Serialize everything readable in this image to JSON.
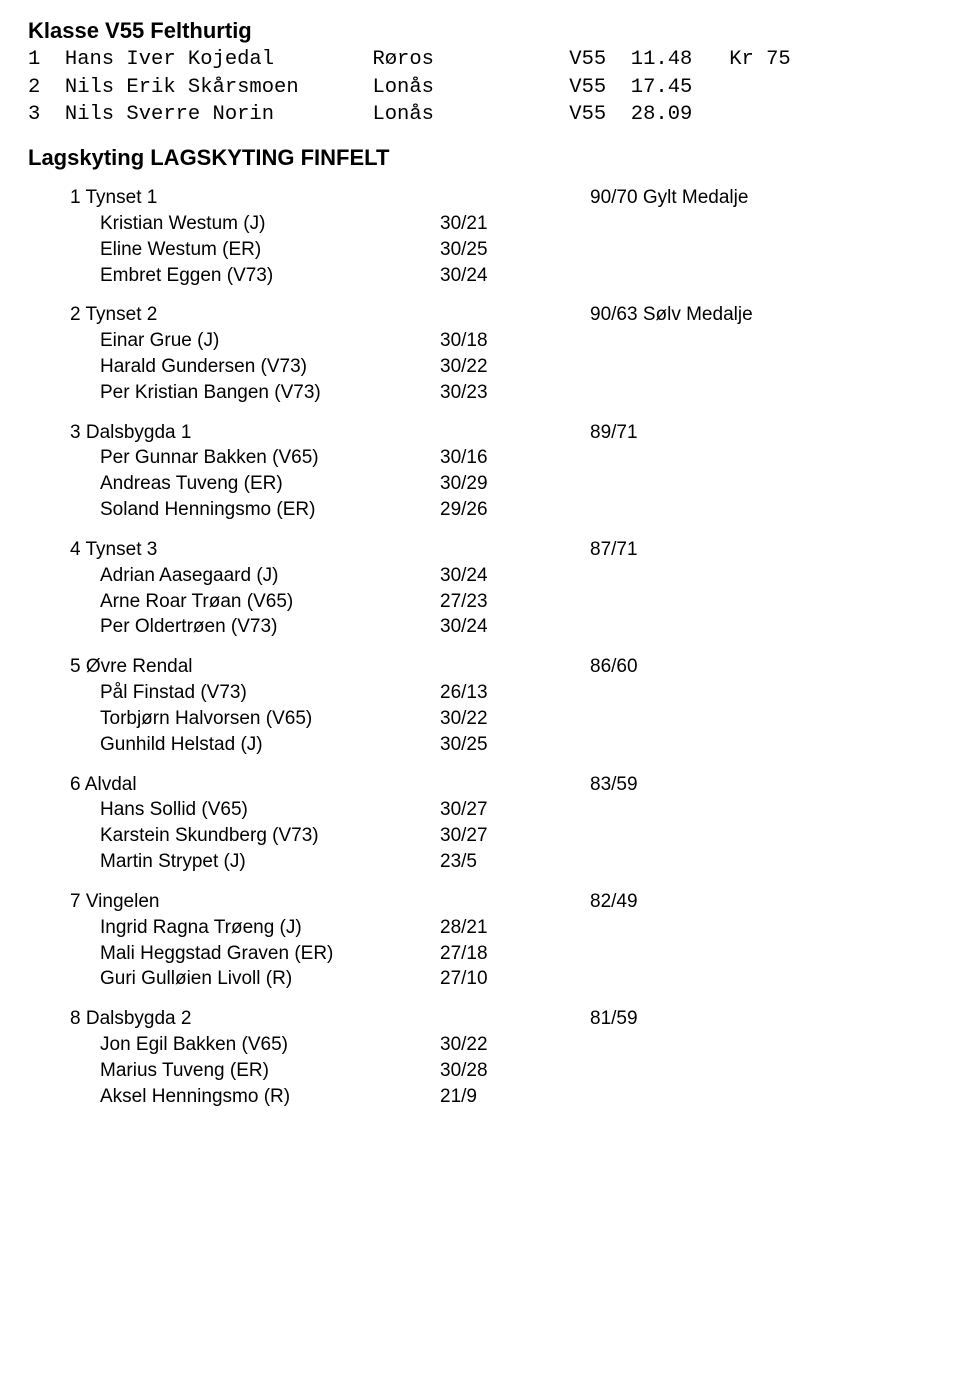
{
  "klass": {
    "title": "Klasse V55 Felthurtig",
    "rows": [
      {
        "rank": "1",
        "name": "Hans Iver Kojedal",
        "club": "Røros",
        "cls": "V55",
        "score": "11.48",
        "kr": "Kr",
        "prize": "75"
      },
      {
        "rank": "2",
        "name": "Nils Erik Skårsmoen",
        "club": "Lonås",
        "cls": "V55",
        "score": "17.45",
        "kr": "",
        "prize": ""
      },
      {
        "rank": "3",
        "name": "Nils Sverre Norin",
        "club": "Lonås",
        "cls": "V55",
        "score": "28.09",
        "kr": "",
        "prize": ""
      }
    ]
  },
  "lagskyting": {
    "heading": "Lagskyting LAGSKYTING FINFELT",
    "teams": [
      {
        "place": "1",
        "name": "Tynset 1",
        "result": "90/70 Gylt Medalje",
        "members": [
          {
            "name": "Kristian Westum (J)",
            "score": "30/21"
          },
          {
            "name": "Eline Westum (ER)",
            "score": "30/25"
          },
          {
            "name": "Embret Eggen (V73)",
            "score": "30/24"
          }
        ]
      },
      {
        "place": "2",
        "name": "Tynset 2",
        "result": "90/63 Sølv Medalje",
        "members": [
          {
            "name": "Einar Grue (J)",
            "score": "30/18"
          },
          {
            "name": "Harald Gundersen (V73)",
            "score": "30/22"
          },
          {
            "name": "Per Kristian Bangen (V73)",
            "score": "30/23"
          }
        ]
      },
      {
        "place": "3",
        "name": "Dalsbygda 1",
        "result": "89/71",
        "members": [
          {
            "name": "Per Gunnar Bakken (V65)",
            "score": "30/16"
          },
          {
            "name": "Andreas Tuveng (ER)",
            "score": "30/29"
          },
          {
            "name": "Soland Henningsmo (ER)",
            "score": "29/26"
          }
        ]
      },
      {
        "place": "4",
        "name": "Tynset 3",
        "result": "87/71",
        "members": [
          {
            "name": "Adrian Aasegaard (J)",
            "score": "30/24"
          },
          {
            "name": "Arne Roar Trøan (V65)",
            "score": "27/23"
          },
          {
            "name": "Per Oldertrøen (V73)",
            "score": "30/24"
          }
        ]
      },
      {
        "place": "5",
        "name": "Øvre Rendal",
        "result": "86/60",
        "members": [
          {
            "name": "Pål Finstad (V73)",
            "score": "26/13"
          },
          {
            "name": "Torbjørn Halvorsen (V65)",
            "score": "30/22"
          },
          {
            "name": "Gunhild Helstad (J)",
            "score": "30/25"
          }
        ]
      },
      {
        "place": "6",
        "name": "Alvdal",
        "result": "83/59",
        "members": [
          {
            "name": "Hans Sollid (V65)",
            "score": "30/27"
          },
          {
            "name": "Karstein Skundberg (V73)",
            "score": "30/27"
          },
          {
            "name": "Martin Strypet (J)",
            "score": "23/5"
          }
        ]
      },
      {
        "place": "7",
        "name": "Vingelen",
        "result": "82/49",
        "members": [
          {
            "name": "Ingrid Ragna Trøeng (J)",
            "score": "28/21"
          },
          {
            "name": "Mali Heggstad Graven (ER)",
            "score": "27/18"
          },
          {
            "name": "Guri Gulløien Livoll (R)",
            "score": "27/10"
          }
        ]
      },
      {
        "place": "8",
        "name": "Dalsbygda 2",
        "result": "81/59",
        "members": [
          {
            "name": "Jon Egil Bakken (V65)",
            "score": "30/22"
          },
          {
            "name": "Marius Tuveng (ER)",
            "score": "30/28"
          },
          {
            "name": "Aksel Henningsmo (R)",
            "score": "21/9"
          }
        ]
      }
    ]
  },
  "layout": {
    "mono_cols": {
      "rank": 2,
      "name": 25,
      "club": 16,
      "cls": 4,
      "score": 8,
      "kr": 3,
      "prize": 3
    }
  }
}
